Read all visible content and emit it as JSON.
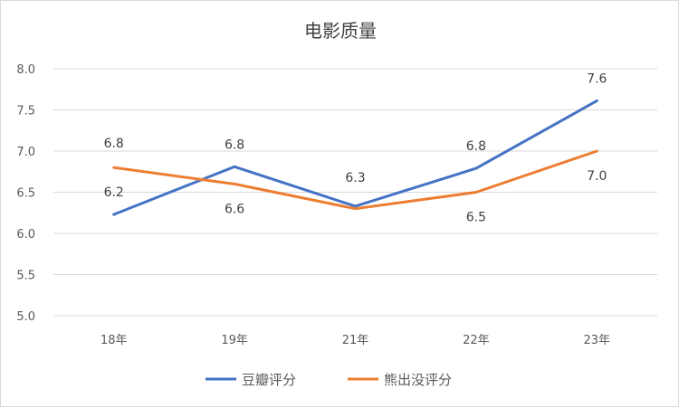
{
  "chart_data": {
    "type": "line",
    "title": "电影质量",
    "categories": [
      "18年",
      "19年",
      "21年",
      "22年",
      "23年"
    ],
    "ylim": [
      5.0,
      8.0
    ],
    "yticks": [
      "5.0",
      "5.5",
      "6.0",
      "6.5",
      "7.0",
      "7.5",
      "8.0"
    ],
    "grid": true,
    "legend": "bottom",
    "series": [
      {
        "name": "豆瓣评分",
        "color": "#4472c4",
        "values": [
          6.23,
          6.81,
          6.33,
          6.79,
          7.61
        ],
        "labels": [
          "6.2",
          "6.8",
          "6.3",
          "6.8",
          "7.6"
        ]
      },
      {
        "name": "熊出没评分",
        "color": "#ed7d31",
        "values": [
          6.8,
          6.6,
          6.3,
          6.5,
          7.0
        ],
        "labels": [
          "6.8",
          "6.6",
          "",
          "6.5",
          "7.0"
        ]
      }
    ]
  }
}
